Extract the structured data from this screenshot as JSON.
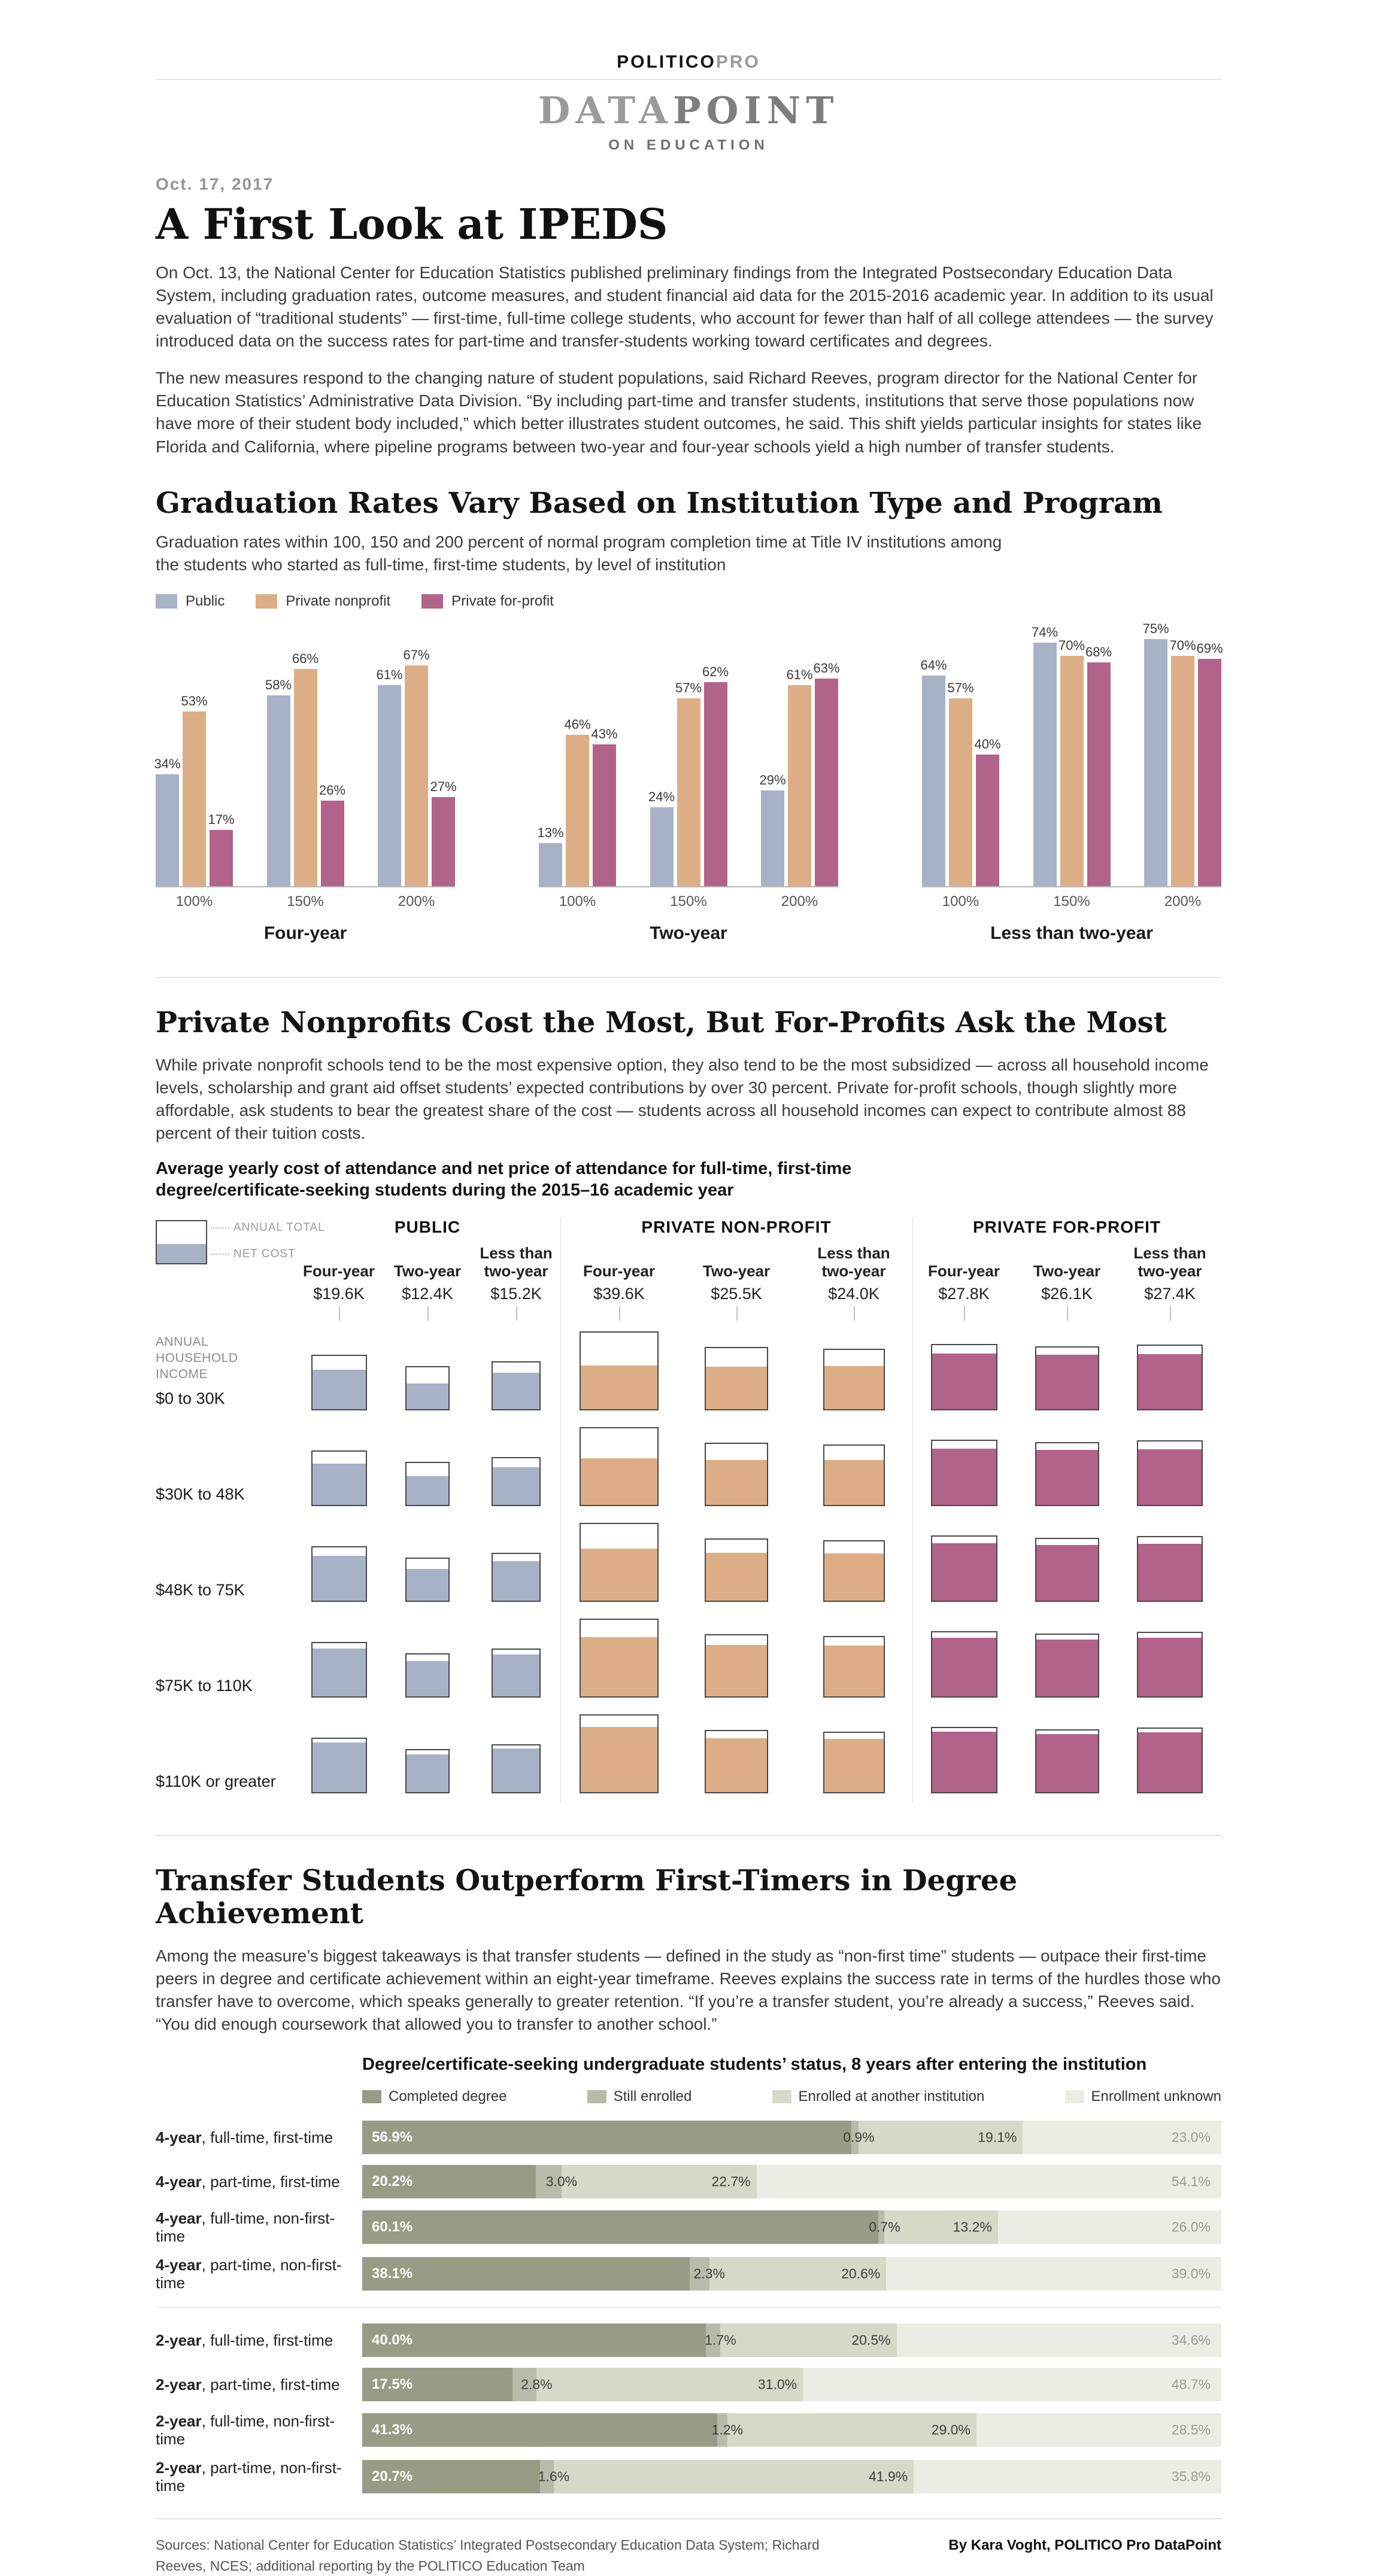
{
  "masthead": {
    "brand_main": "POLITICO",
    "brand_pro": "PRO",
    "logo_part1": "DATA",
    "logo_part2": "POINT",
    "logo_tagline": "ON EDUCATION"
  },
  "article": {
    "date": "Oct. 17, 2017",
    "title": "A First Look at IPEDS",
    "paragraphs": [
      "On Oct. 13, the National Center for Education Statistics published preliminary findings from the Integrated Postsecondary Education Data System, including graduation rates, outcome measures, and student financial aid data for the 2015-2016 academic year. In addition to its usual evaluation of “traditional students” — first-time, full-time college students, who account for fewer than half of all college attendees — the survey introduced data on the success rates for part-time and transfer-students working toward certificates and degrees.",
      "The new measures respond to the changing nature of student populations, said Richard Reeves, program director for the National Center for Education Statistics’ Administrative Data Division. “By including part-time and transfer students, institutions that serve those populations now have more of their student body included,” which better illustrates student outcomes, he said. This shift yields particular insights for states like Florida and California, where pipeline programs between two-year and four-year schools yield a high number of transfer students."
    ]
  },
  "section1": {
    "heading": "Graduation Rates Vary Based on Institution Type and Program",
    "subtitle": "Graduation rates within 100, 150 and 200 percent of normal program completion time at Title IV institutions among the students who started as full-time, first-time students, by level of institution"
  },
  "section2": {
    "heading": "Private Nonprofits Cost the Most, But For-Profits Ask the Most",
    "paragraph": "While private nonprofit schools tend to be the most expensive option, they also tend to be the most subsidized — across all household income levels, scholarship and grant aid offset students’ expected contributions by over 30 percent. Private for-profit schools, though slightly more affordable, ask students to bear the greatest share of the cost — students across all household incomes can expect to contribute almost 88 percent of their tuition costs.",
    "chart_title": "Average yearly cost of attendance and net price of attendance for full-time, first-time degree/certificate-seeking students during the 2015–16 academic year"
  },
  "section3": {
    "heading": "Transfer Students Outperform First-Timers in Degree Achievement",
    "paragraph": "Among the measure’s biggest takeaways is that transfer students — defined in the study as “non-first time” students — outpace their first-time peers in degree and certificate achievement within an eight-year timeframe. Reeves explains the success rate in terms of the hurdles those who transfer have to overcome, which speaks generally to greater retention. “If you’re a transfer student, you’re already a success,” Reeves said. “You did enough coursework that allowed you to transfer to another school.”",
    "chart_title": "Degree/certificate-seeking undergraduate students’ status, 8 years after entering the institution"
  },
  "chart_data": [
    {
      "id": "graduation_rates",
      "type": "bar",
      "unit": "percent",
      "ylim": [
        0,
        80
      ],
      "legend": [
        {
          "name": "Public",
          "color": "#a8b2c6"
        },
        {
          "name": "Private nonprofit",
          "color": "#ddae86"
        },
        {
          "name": "Private for-profit",
          "color": "#b2638a"
        }
      ],
      "groups": [
        {
          "label": "Four-year",
          "categories": [
            "100%",
            "150%",
            "200%"
          ],
          "series": [
            {
              "name": "Public",
              "values": [
                34,
                58,
                61
              ]
            },
            {
              "name": "Private nonprofit",
              "values": [
                53,
                66,
                67
              ]
            },
            {
              "name": "Private for-profit",
              "values": [
                17,
                26,
                27
              ]
            }
          ]
        },
        {
          "label": "Two-year",
          "categories": [
            "100%",
            "150%",
            "200%"
          ],
          "series": [
            {
              "name": "Public",
              "values": [
                13,
                24,
                29
              ]
            },
            {
              "name": "Private nonprofit",
              "values": [
                46,
                57,
                61
              ]
            },
            {
              "name": "Private for-profit",
              "values": [
                43,
                62,
                63
              ]
            }
          ]
        },
        {
          "label": "Less than two-year",
          "categories": [
            "100%",
            "150%",
            "200%"
          ],
          "series": [
            {
              "name": "Public",
              "values": [
                64,
                74,
                75
              ]
            },
            {
              "name": "Private nonprofit",
              "values": [
                57,
                70,
                70
              ]
            },
            {
              "name": "Private for-profit",
              "values": [
                40,
                68,
                69
              ]
            }
          ]
        }
      ]
    },
    {
      "id": "cost_of_attendance",
      "type": "table",
      "legend": {
        "annual_total_label": "ANNUAL TOTAL",
        "net_cost_label": "NET COST"
      },
      "row_axis_caption": "ANNUAL HOUSEHOLD INCOME",
      "income_rows": [
        "$0 to 30K",
        "$30K to 48K",
        "$48K to 75K",
        "$75K to 110K",
        "$110K or greater"
      ],
      "groups": [
        {
          "label": "PUBLIC",
          "fill_color": "#a8b2c6",
          "columns": [
            {
              "label": "Four-year",
              "annual_total": "$19.6K",
              "annual_total_k": 19.6,
              "net_cost_fractions": [
                0.74,
                0.78,
                0.84,
                0.9,
                0.93
              ]
            },
            {
              "label": "Two-year",
              "annual_total": "$12.4K",
              "annual_total_k": 12.4,
              "net_cost_fractions": [
                0.62,
                0.68,
                0.76,
                0.84,
                0.9
              ]
            },
            {
              "label": "Less than two-year",
              "annual_total": "$15.2K",
              "annual_total_k": 15.2,
              "net_cost_fractions": [
                0.78,
                0.81,
                0.85,
                0.9,
                0.93
              ]
            }
          ]
        },
        {
          "label": "PRIVATE NON-PROFIT",
          "fill_color": "#ddae86",
          "columns": [
            {
              "label": "Four-year",
              "annual_total": "$39.6K",
              "annual_total_k": 39.6,
              "net_cost_fractions": [
                0.57,
                0.61,
                0.68,
                0.77,
                0.85
              ]
            },
            {
              "label": "Two-year",
              "annual_total": "$25.5K",
              "annual_total_k": 25.5,
              "net_cost_fractions": [
                0.7,
                0.73,
                0.78,
                0.84,
                0.88
              ]
            },
            {
              "label": "Less than two-year",
              "annual_total": "$24.0K",
              "annual_total_k": 24.0,
              "net_cost_fractions": [
                0.73,
                0.76,
                0.8,
                0.86,
                0.9
              ]
            }
          ]
        },
        {
          "label": "PRIVATE FOR-PROFIT",
          "fill_color": "#b2638a",
          "columns": [
            {
              "label": "Four-year",
              "annual_total": "$27.8K",
              "annual_total_k": 27.8,
              "net_cost_fractions": [
                0.87,
                0.88,
                0.9,
                0.92,
                0.94
              ]
            },
            {
              "label": "Two-year",
              "annual_total": "$26.1K",
              "annual_total_k": 26.1,
              "net_cost_fractions": [
                0.88,
                0.89,
                0.9,
                0.92,
                0.94
              ]
            },
            {
              "label": "Less than two-year",
              "annual_total": "$27.4K",
              "annual_total_k": 27.4,
              "net_cost_fractions": [
                0.87,
                0.88,
                0.9,
                0.92,
                0.94
              ]
            }
          ]
        }
      ]
    },
    {
      "id": "student_status",
      "type": "bar",
      "variant": "horizontal-stacked",
      "unit": "percent",
      "legend": [
        "Completed degree",
        "Still enrolled",
        "Enrolled at another institution",
        "Enrollment unknown"
      ],
      "colors": [
        "#9a9b87",
        "#b9baa9",
        "#d8d8c8",
        "#edece4"
      ],
      "rows": [
        {
          "label_bold": "4-year",
          "label_rest": ", full-time, first-time",
          "values": [
            56.9,
            0.9,
            19.1,
            23.0
          ]
        },
        {
          "label_bold": "4-year",
          "label_rest": ", part-time, first-time",
          "values": [
            20.2,
            3.0,
            22.7,
            54.1
          ]
        },
        {
          "label_bold": "4-year",
          "label_rest": ", full-time, non-first-time",
          "values": [
            60.1,
            0.7,
            13.2,
            26.0
          ]
        },
        {
          "label_bold": "4-year",
          "label_rest": ", part-time, non-first-time",
          "values": [
            38.1,
            2.3,
            20.6,
            39.0
          ]
        },
        {
          "label_bold": "2-year",
          "label_rest": ", full-time, first-time",
          "divider_before": true,
          "values": [
            40.0,
            1.7,
            20.5,
            34.6
          ]
        },
        {
          "label_bold": "2-year",
          "label_rest": ", part-time, first-time",
          "values": [
            17.5,
            2.8,
            31.0,
            48.7
          ]
        },
        {
          "label_bold": "2-year",
          "label_rest": ", full-time, non-first-time",
          "values": [
            41.3,
            1.2,
            29.0,
            28.5
          ]
        },
        {
          "label_bold": "2-year",
          "label_rest": ", part-time, non-first-time",
          "values": [
            20.7,
            1.6,
            41.9,
            35.8
          ]
        }
      ]
    }
  ],
  "footer": {
    "sources": "Sources: National Center for Education Statistics’ Integrated Postsecondary Education Data System; Richard Reeves, NCES; additional reporting by the POLITICO Education Team",
    "byline": "By Kara Voght, POLITICO Pro DataPoint"
  }
}
